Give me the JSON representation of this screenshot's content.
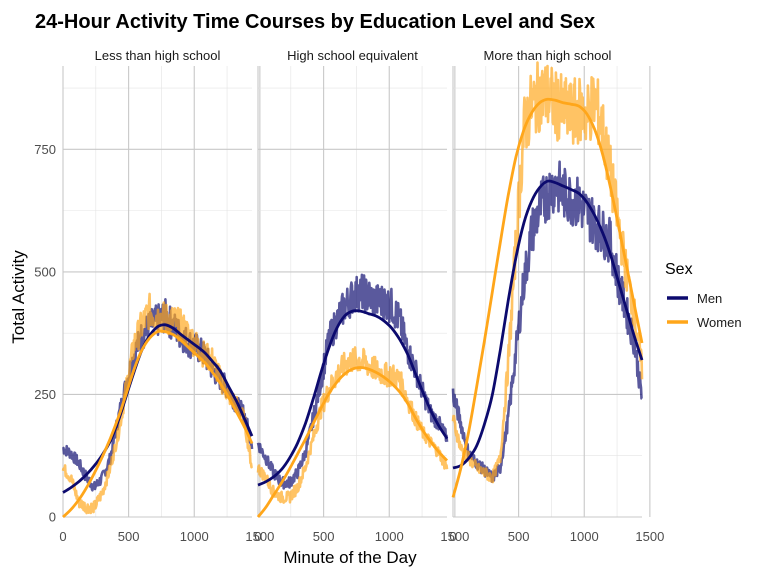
{
  "chart_data": {
    "type": "line",
    "title": "24-Hour Activity Time Courses by Education Level and Sex",
    "xlabel": "Minute of the Day",
    "ylabel": "Total Activity",
    "xlim": [
      0,
      1440
    ],
    "ylim": [
      0,
      920
    ],
    "x_ticks": [
      0,
      500,
      1000,
      1500
    ],
    "x_tick_labels": [
      "0",
      "500",
      "1000",
      "1500"
    ],
    "y_ticks": [
      0,
      250,
      500,
      750
    ],
    "y_tick_labels": [
      "0",
      "250",
      "500",
      "750"
    ],
    "grid": true,
    "legend": {
      "title": "Sex",
      "placement": "right",
      "entries": [
        "Men",
        "Women"
      ]
    },
    "colors": {
      "Men": "#0c0a6e",
      "Women": "#ffa61a"
    },
    "smooth_x": [
      0,
      60,
      120,
      180,
      240,
      300,
      360,
      420,
      480,
      540,
      600,
      660,
      720,
      780,
      840,
      900,
      960,
      1020,
      1080,
      1140,
      1200,
      1260,
      1320,
      1380,
      1440
    ],
    "panels": [
      {
        "facet": "Less than high school",
        "series": [
          {
            "name": "Men",
            "smooth": [
              50,
              60,
              72,
              87,
              105,
              127,
              155,
              195,
              245,
              295,
              340,
              370,
              388,
              392,
              385,
              372,
              360,
              348,
              335,
              317,
              297,
              267,
              237,
              202,
              165
            ]
          },
          {
            "name": "Women",
            "smooth": [
              0,
              15,
              35,
              60,
              90,
              123,
              160,
              202,
              250,
              300,
              340,
              365,
              378,
              378,
              372,
              360,
              345,
              330,
              315,
              295,
              272,
              245,
              215,
              185,
              150
            ]
          }
        ],
        "raw": [
          {
            "name": "Men",
            "values": [
              140,
              130,
              110,
              80,
              60,
              80,
              120,
              200,
              270,
              330,
              370,
              390,
              400,
              410,
              390,
              370,
              355,
              345,
              330,
              300,
              280,
              260,
              230,
              210,
              150
            ]
          },
          {
            "name": "Women",
            "values": [
              100,
              80,
              30,
              20,
              20,
              50,
              100,
              170,
              260,
              350,
              390,
              420,
              410,
              405,
              400,
              390,
              370,
              350,
              330,
              320,
              280,
              250,
              230,
              200,
              100
            ]
          }
        ]
      },
      {
        "facet": "High school equivalent",
        "series": [
          {
            "name": "Men",
            "smooth": [
              65,
              72,
              82,
              97,
              120,
              150,
              190,
              240,
              295,
              345,
              385,
              410,
              420,
              420,
              415,
              410,
              400,
              385,
              362,
              332,
              292,
              252,
              215,
              185,
              160
            ]
          },
          {
            "name": "Women",
            "smooth": [
              0,
              20,
              45,
              70,
              98,
              128,
              158,
              190,
              222,
              252,
              275,
              292,
              302,
              305,
              302,
              295,
              285,
              272,
              255,
              232,
              202,
              175,
              152,
              132,
              115
            ]
          }
        ],
        "raw": [
          {
            "name": "Men",
            "values": [
              150,
              120,
              90,
              70,
              70,
              90,
              130,
              200,
              280,
              360,
              400,
              430,
              450,
              460,
              450,
              440,
              440,
              430,
              400,
              340,
              300,
              250,
              210,
              190,
              160
            ]
          },
          {
            "name": "Women",
            "values": [
              100,
              80,
              50,
              40,
              40,
              60,
              100,
              160,
              220,
              260,
              290,
              310,
              320,
              320,
              310,
              300,
              290,
              290,
              280,
              240,
              200,
              170,
              150,
              130,
              100
            ]
          }
        ]
      },
      {
        "facet": "More than high school",
        "series": [
          {
            "name": "Men",
            "smooth": [
              100,
              105,
              120,
              145,
              190,
              250,
              340,
              440,
              530,
              600,
              645,
              672,
              685,
              682,
              675,
              668,
              660,
              642,
              615,
              580,
              535,
              480,
              425,
              370,
              320
            ]
          },
          {
            "name": "Women",
            "smooth": [
              40,
              100,
              175,
              265,
              360,
              460,
              560,
              655,
              735,
              790,
              825,
              845,
              852,
              850,
              845,
              842,
              838,
              822,
              790,
              740,
              672,
              595,
              515,
              435,
              355
            ]
          }
        ],
        "raw": [
          {
            "name": "Men",
            "values": [
              250,
              190,
              130,
              110,
              95,
              80,
              100,
              200,
              340,
              480,
              580,
              630,
              660,
              680,
              660,
              650,
              640,
              620,
              600,
              580,
              560,
              480,
              420,
              360,
              240
            ]
          },
          {
            "name": "Women",
            "values": [
              200,
              140,
              120,
              100,
              90,
              80,
              120,
              310,
              560,
              790,
              840,
              860,
              860,
              840,
              830,
              820,
              830,
              820,
              850,
              790,
              700,
              600,
              500,
              420,
              300
            ]
          }
        ]
      }
    ]
  }
}
